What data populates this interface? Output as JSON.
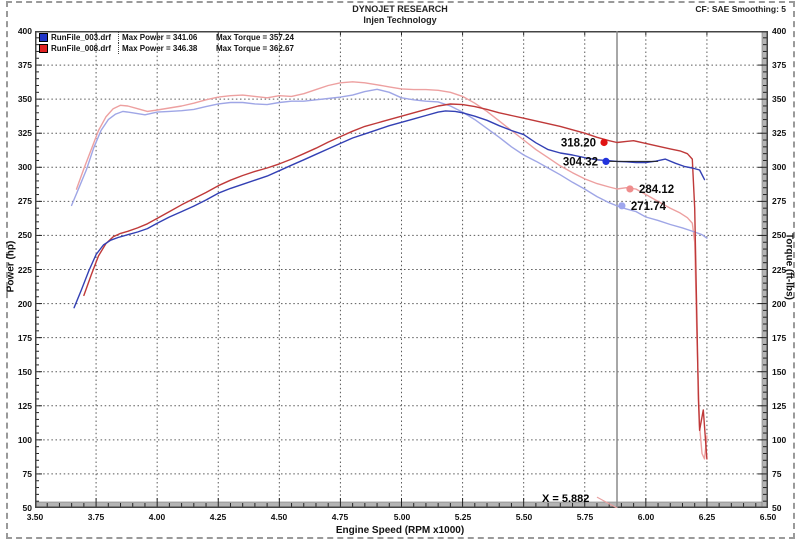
{
  "header": {
    "title": "DYNOJET RESEARCH",
    "subtitle": "Injen Technology",
    "corner_info": "CF: SAE  Smoothing: 5"
  },
  "legend": [
    {
      "file": "RunFile_003.drf",
      "color": "#2236c8",
      "max_power": 341.06,
      "max_torque": 357.24,
      "max_power_label": "Max Power = 341.06",
      "max_torque_label": "Max Torque = 357.24"
    },
    {
      "file": "RunFile_008.drf",
      "color": "#e02222",
      "max_power": 346.38,
      "max_torque": 362.67,
      "max_power_label": "Max Power = 346.38",
      "max_torque_label": "Max Torque = 362.67"
    }
  ],
  "cursor": {
    "x": 5.882,
    "label": "X = 5.882",
    "line_color": "#8a8a8a",
    "connector": [
      [
        5.8,
        58
      ],
      [
        5.882,
        50
      ]
    ],
    "readouts": [
      {
        "value": "318.20",
        "dot": [
          5.829,
          318.2
        ],
        "color": "#e01212",
        "side": "left"
      },
      {
        "value": "304.32",
        "dot": [
          5.837,
          304.32
        ],
        "color": "#2233dd",
        "side": "left",
        "leader_to": 6.05
      },
      {
        "value": "284.12",
        "dot": [
          5.935,
          284.12
        ],
        "color": "#ef8d8d",
        "side": "right"
      },
      {
        "value": "271.74",
        "dot": [
          5.902,
          271.74
        ],
        "color": "#9fa6ee",
        "side": "right"
      }
    ]
  },
  "chart_data": {
    "type": "line",
    "title": "DYNOJET RESEARCH - Injen Technology",
    "xlabel": "Engine Speed (RPM x1000)",
    "ylabel_left": "Power (hp)",
    "ylabel_right": "Torque (ft-lbs)",
    "x_range": [
      3.5,
      6.5
    ],
    "y_range": [
      50,
      400
    ],
    "x_tick_labels": [
      "3.50",
      "3.75",
      "4.00",
      "4.25",
      "4.50",
      "4.75",
      "5.00",
      "5.25",
      "5.50",
      "5.75",
      "6.00",
      "6.25",
      "6.50"
    ],
    "y_ticks": [
      400,
      375,
      350,
      325,
      300,
      275,
      250,
      225,
      200,
      175,
      150,
      125,
      100,
      75,
      50
    ],
    "x_minor_step": 0.05,
    "y_minor_step": 5,
    "grid": "dashed",
    "legend_position": "top-left",
    "series": [
      {
        "name": "torque_runfile_008",
        "axis": "torque",
        "color": "#eda0a0",
        "points": [
          [
            3.67,
            284
          ],
          [
            3.7,
            299
          ],
          [
            3.73,
            313
          ],
          [
            3.76,
            327
          ],
          [
            3.79,
            337
          ],
          [
            3.82,
            343
          ],
          [
            3.85,
            345.5
          ],
          [
            3.88,
            345
          ],
          [
            3.92,
            343
          ],
          [
            3.96,
            341
          ],
          [
            4.0,
            342
          ],
          [
            4.05,
            343.5
          ],
          [
            4.1,
            345
          ],
          [
            4.15,
            347
          ],
          [
            4.2,
            349.5
          ],
          [
            4.25,
            351.5
          ],
          [
            4.3,
            352.5
          ],
          [
            4.35,
            353
          ],
          [
            4.4,
            352
          ],
          [
            4.45,
            351
          ],
          [
            4.5,
            352.5
          ],
          [
            4.55,
            352
          ],
          [
            4.6,
            354
          ],
          [
            4.65,
            357
          ],
          [
            4.7,
            360
          ],
          [
            4.75,
            362
          ],
          [
            4.8,
            362.7
          ],
          [
            4.85,
            362
          ],
          [
            4.9,
            360.5
          ],
          [
            4.95,
            359
          ],
          [
            5.0,
            357.5
          ],
          [
            5.05,
            357
          ],
          [
            5.1,
            357
          ],
          [
            5.15,
            356.5
          ],
          [
            5.2,
            355
          ],
          [
            5.25,
            352
          ],
          [
            5.3,
            347
          ],
          [
            5.35,
            341
          ],
          [
            5.4,
            334
          ],
          [
            5.45,
            327
          ],
          [
            5.5,
            320
          ],
          [
            5.55,
            313
          ],
          [
            5.6,
            307
          ],
          [
            5.65,
            301
          ],
          [
            5.7,
            296
          ],
          [
            5.75,
            291.5
          ],
          [
            5.8,
            288
          ],
          [
            5.85,
            285.5
          ],
          [
            5.882,
            284.1
          ],
          [
            5.92,
            285
          ],
          [
            5.96,
            284
          ],
          [
            6.0,
            280
          ],
          [
            6.05,
            275
          ],
          [
            6.1,
            270
          ],
          [
            6.14,
            266.5
          ],
          [
            6.17,
            263
          ],
          [
            6.19,
            259
          ],
          [
            6.2,
            245
          ],
          [
            6.21,
            170
          ],
          [
            6.22,
            110
          ],
          [
            6.23,
            90
          ],
          [
            6.24,
            86
          ],
          [
            6.25,
            103
          ]
        ]
      },
      {
        "name": "torque_runfile_003",
        "axis": "torque",
        "color": "#9fa6e6",
        "points": [
          [
            3.65,
            272
          ],
          [
            3.68,
            285
          ],
          [
            3.71,
            298
          ],
          [
            3.74,
            314
          ],
          [
            3.77,
            327
          ],
          [
            3.8,
            335
          ],
          [
            3.83,
            339
          ],
          [
            3.86,
            341
          ],
          [
            3.9,
            340
          ],
          [
            3.95,
            338.5
          ],
          [
            4.0,
            340.5
          ],
          [
            4.05,
            341
          ],
          [
            4.1,
            341.5
          ],
          [
            4.15,
            342.5
          ],
          [
            4.2,
            344.5
          ],
          [
            4.25,
            346.5
          ],
          [
            4.3,
            347.5
          ],
          [
            4.35,
            347.5
          ],
          [
            4.4,
            346.5
          ],
          [
            4.45,
            346
          ],
          [
            4.5,
            347.5
          ],
          [
            4.55,
            348.5
          ],
          [
            4.6,
            348.5
          ],
          [
            4.65,
            349.5
          ],
          [
            4.7,
            350.5
          ],
          [
            4.75,
            351.5
          ],
          [
            4.8,
            353
          ],
          [
            4.85,
            355.5
          ],
          [
            4.9,
            357.2
          ],
          [
            4.95,
            355
          ],
          [
            5.0,
            351
          ],
          [
            5.05,
            349.5
          ],
          [
            5.1,
            348.5
          ],
          [
            5.15,
            348
          ],
          [
            5.2,
            345
          ],
          [
            5.25,
            340.5
          ],
          [
            5.3,
            335
          ],
          [
            5.35,
            328.5
          ],
          [
            5.4,
            322
          ],
          [
            5.45,
            315
          ],
          [
            5.5,
            309
          ],
          [
            5.55,
            304.5
          ],
          [
            5.6,
            299.5
          ],
          [
            5.65,
            294.5
          ],
          [
            5.7,
            289
          ],
          [
            5.75,
            284
          ],
          [
            5.8,
            278.5
          ],
          [
            5.85,
            274
          ],
          [
            5.882,
            271.7
          ],
          [
            5.92,
            269.5
          ],
          [
            5.96,
            267.5
          ],
          [
            6.0,
            263.5
          ],
          [
            6.05,
            261
          ],
          [
            6.1,
            258
          ],
          [
            6.15,
            255.5
          ],
          [
            6.2,
            252.5
          ],
          [
            6.23,
            250.5
          ],
          [
            6.25,
            248
          ]
        ]
      },
      {
        "name": "power_runfile_008",
        "axis": "power",
        "color": "#bf3939",
        "points": [
          [
            3.7,
            206
          ],
          [
            3.73,
            221
          ],
          [
            3.76,
            235
          ],
          [
            3.79,
            244
          ],
          [
            3.82,
            249
          ],
          [
            3.85,
            251.5
          ],
          [
            3.88,
            253
          ],
          [
            3.92,
            255.5
          ],
          [
            3.96,
            258.5
          ],
          [
            4.0,
            262.5
          ],
          [
            4.05,
            267.5
          ],
          [
            4.1,
            272.5
          ],
          [
            4.15,
            277
          ],
          [
            4.2,
            281.5
          ],
          [
            4.25,
            286.5
          ],
          [
            4.3,
            290.5
          ],
          [
            4.35,
            294
          ],
          [
            4.4,
            297
          ],
          [
            4.45,
            299.5
          ],
          [
            4.5,
            302.5
          ],
          [
            4.55,
            306
          ],
          [
            4.6,
            310
          ],
          [
            4.65,
            314
          ],
          [
            4.7,
            318.5
          ],
          [
            4.75,
            322.5
          ],
          [
            4.8,
            326.5
          ],
          [
            4.85,
            330
          ],
          [
            4.9,
            332.5
          ],
          [
            4.95,
            335
          ],
          [
            5.0,
            337.5
          ],
          [
            5.05,
            340
          ],
          [
            5.1,
            342.5
          ],
          [
            5.15,
            345
          ],
          [
            5.2,
            346.4
          ],
          [
            5.25,
            346
          ],
          [
            5.3,
            344.5
          ],
          [
            5.35,
            342.5
          ],
          [
            5.4,
            340
          ],
          [
            5.45,
            338
          ],
          [
            5.5,
            336
          ],
          [
            5.55,
            334
          ],
          [
            5.6,
            332
          ],
          [
            5.65,
            330
          ],
          [
            5.7,
            327.5
          ],
          [
            5.75,
            325
          ],
          [
            5.8,
            322
          ],
          [
            5.85,
            319.5
          ],
          [
            5.882,
            318.2
          ],
          [
            5.92,
            319
          ],
          [
            5.95,
            319.5
          ],
          [
            6.0,
            317.5
          ],
          [
            6.05,
            315.5
          ],
          [
            6.1,
            313.5
          ],
          [
            6.14,
            312
          ],
          [
            6.17,
            310
          ],
          [
            6.19,
            306
          ],
          [
            6.2,
            270
          ],
          [
            6.21,
            180
          ],
          [
            6.215,
            130
          ],
          [
            6.22,
            107
          ],
          [
            6.235,
            122
          ],
          [
            6.25,
            86
          ]
        ]
      },
      {
        "name": "power_runfile_003",
        "axis": "power",
        "color": "#3340b4",
        "points": [
          [
            3.66,
            197
          ],
          [
            3.69,
            210
          ],
          [
            3.72,
            224
          ],
          [
            3.75,
            236
          ],
          [
            3.78,
            243
          ],
          [
            3.81,
            246.5
          ],
          [
            3.84,
            248.5
          ],
          [
            3.88,
            250.5
          ],
          [
            3.92,
            252.5
          ],
          [
            3.96,
            255
          ],
          [
            4.0,
            259
          ],
          [
            4.05,
            263.5
          ],
          [
            4.1,
            267.5
          ],
          [
            4.15,
            271.5
          ],
          [
            4.2,
            276
          ],
          [
            4.25,
            281
          ],
          [
            4.3,
            284.5
          ],
          [
            4.35,
            287.5
          ],
          [
            4.4,
            290.5
          ],
          [
            4.45,
            293.5
          ],
          [
            4.5,
            297.5
          ],
          [
            4.55,
            301.5
          ],
          [
            4.6,
            305.5
          ],
          [
            4.65,
            309.5
          ],
          [
            4.7,
            313.5
          ],
          [
            4.75,
            317.5
          ],
          [
            4.8,
            321.5
          ],
          [
            4.85,
            324.5
          ],
          [
            4.9,
            327.5
          ],
          [
            4.95,
            330.5
          ],
          [
            5.0,
            333
          ],
          [
            5.05,
            335.5
          ],
          [
            5.1,
            338
          ],
          [
            5.15,
            340.5
          ],
          [
            5.18,
            341.4
          ],
          [
            5.22,
            341
          ],
          [
            5.25,
            340
          ],
          [
            5.3,
            337.5
          ],
          [
            5.35,
            334.5
          ],
          [
            5.4,
            330.5
          ],
          [
            5.45,
            327
          ],
          [
            5.5,
            324
          ],
          [
            5.55,
            318
          ],
          [
            5.6,
            313
          ],
          [
            5.65,
            310.5
          ],
          [
            5.7,
            309
          ],
          [
            5.75,
            307
          ],
          [
            5.8,
            305.5
          ],
          [
            5.85,
            304.8
          ],
          [
            5.882,
            304.3
          ],
          [
            5.92,
            304
          ],
          [
            5.96,
            303.5
          ],
          [
            6.0,
            303.5
          ],
          [
            6.04,
            304.5
          ],
          [
            6.08,
            306
          ],
          [
            6.12,
            303
          ],
          [
            6.16,
            300.5
          ],
          [
            6.19,
            299.5
          ],
          [
            6.22,
            298
          ],
          [
            6.24,
            291
          ]
        ]
      }
    ]
  }
}
